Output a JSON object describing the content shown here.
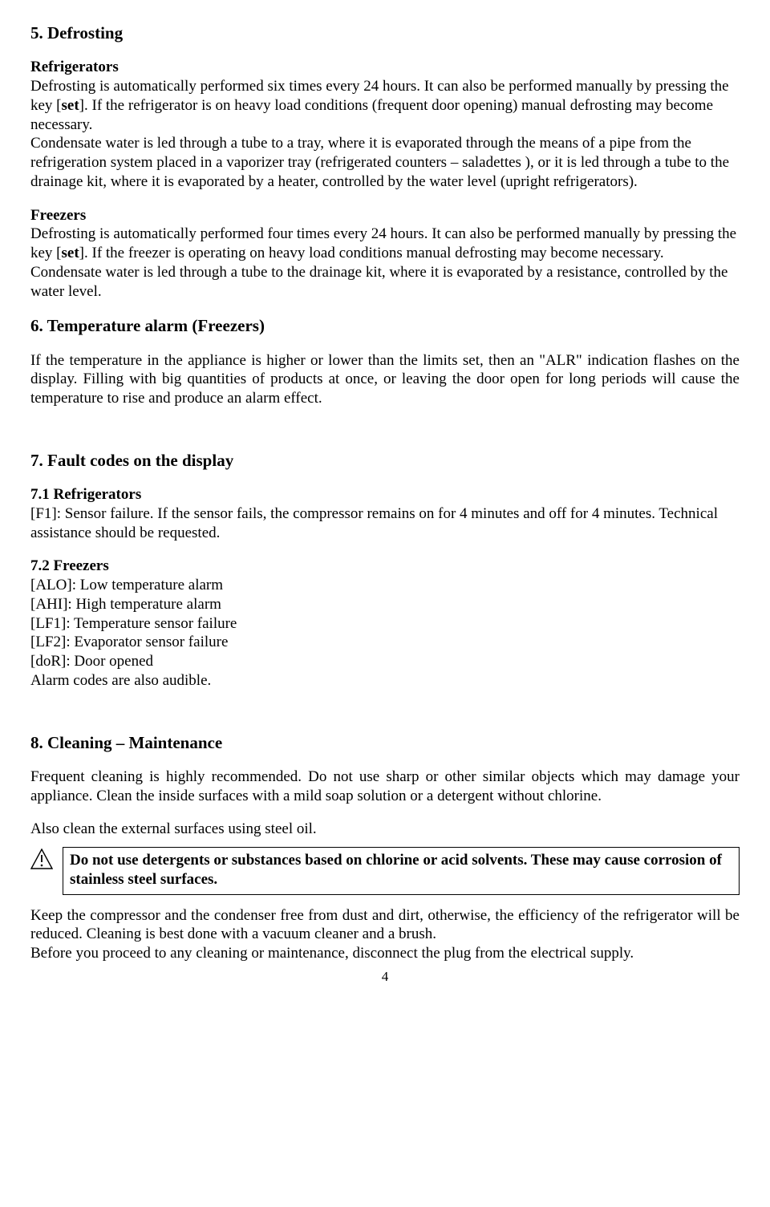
{
  "s5": {
    "heading": "5.  Defrosting",
    "refrig_head": "Refrigerators",
    "refrig_p1a": "Defrosting is automatically performed six times every 24 hours. It can also be performed manually by pressing the key [",
    "refrig_key": "set",
    "refrig_p1b": "]. If the refrigerator is on heavy load conditions (frequent door opening) manual defrosting may become necessary.",
    "refrig_p2": "Condensate water is led through a tube to a tray, where it is evaporated through the means of a pipe from the refrigeration system placed in a vaporizer tray (refrigerated counters – saladettes ), or it is led through a tube to the drainage kit, where it is evaporated by a heater, controlled by the water level (upright refrigerators).",
    "freez_head": "Freezers",
    "freez_p1a": "Defrosting is automatically performed four times every 24 hours. It can also be performed manually by pressing the key [",
    "freez_key": "set",
    "freez_p1b": "]. If the freezer is operating on heavy load conditions manual defrosting may become necessary.",
    "freez_p2": "Condensate water is led through a tube to the drainage kit, where it is evaporated by a resistance, controlled by the water level."
  },
  "s6": {
    "heading": "6.  Temperature alarm (Freezers)",
    "p1": "If the temperature in the appliance is higher or lower than the limits set, then an \"ALR\" indication flashes on the display. Filling with big quantities of products at once, or leaving the door open for long periods will cause the temperature to rise and produce an alarm effect."
  },
  "s7": {
    "heading": "7.  Fault codes on the display",
    "s71_head": "7.1  Refrigerators",
    "s71_body": " [F1]:  Sensor failure. If the sensor fails, the compressor remains on for 4 minutes and off for 4 minutes. Technical assistance should be requested.",
    "s72_head": "7.2 Freezers",
    "codes": [
      "[ALO]: Low temperature alarm",
      "[AHI]: High temperature alarm",
      "[LF1]: Temperature sensor failure",
      "[LF2]: Evaporator sensor failure",
      "[doR]: Door opened"
    ],
    "s72_tail": "Alarm codes are also audible."
  },
  "s8": {
    "heading": "8.  Cleaning – Maintenance",
    "p1": "Frequent cleaning is highly recommended. Do not use sharp or other similar objects which may damage your appliance. Clean the inside surfaces with a mild soap solution or a detergent without chlorine.",
    "p2": "Also clean the external surfaces using steel oil.",
    "warn": "Do not use detergents or substances based on chlorine or acid solvents.  These may cause corrosion of stainless steel surfaces.",
    "p3": "Keep the compressor and the condenser free from dust and dirt, otherwise, the efficiency of the refrigerator will be reduced. Cleaning is best done with a vacuum cleaner and a brush.",
    "p4": "Before you proceed to any cleaning or maintenance, disconnect the plug from the electrical supply."
  },
  "page_number": "4"
}
